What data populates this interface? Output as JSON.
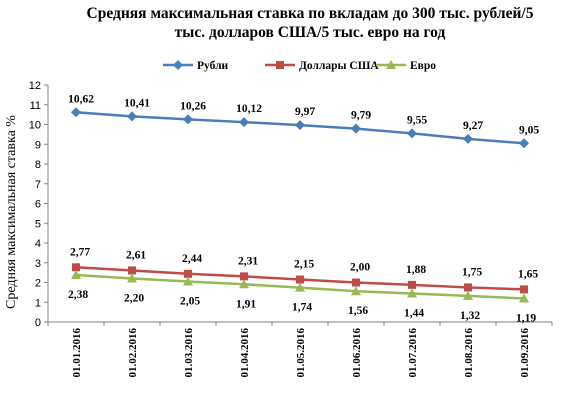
{
  "chart_data": {
    "type": "line",
    "title_line1": "Средняя максимальная ставка по вкладам до 300 тыс. рублей/5",
    "title_line2": "тыс. долларов США/5 тыс. евро на год",
    "ylabel": "Средняя максимальная ставка %",
    "xlabel": "",
    "ylim": [
      0,
      12
    ],
    "yticks": [
      "0",
      "1",
      "2",
      "3",
      "4",
      "5",
      "6",
      "7",
      "8",
      "9",
      "10",
      "11",
      "12"
    ],
    "categories": [
      "01.01.2016",
      "01.02.2016",
      "01.03.2016",
      "01.04.2016",
      "01.05.2016",
      "01.06.2016",
      "01.07.2016",
      "01.08.2016",
      "01.09.2016"
    ],
    "legend_position": "top",
    "grid": false,
    "series": [
      {
        "name": "Рубли",
        "color": "#4a7ebb",
        "marker": "diamond",
        "values": [
          10.62,
          10.41,
          10.26,
          10.12,
          9.97,
          9.79,
          9.55,
          9.27,
          9.05
        ],
        "labels": [
          "10,62",
          "10,41",
          "10,26",
          "10,12",
          "9,97",
          "9,79",
          "9,55",
          "9,27",
          "9,05"
        ]
      },
      {
        "name": "Доллары США",
        "color": "#be4b48",
        "marker": "square",
        "values": [
          2.77,
          2.61,
          2.44,
          2.31,
          2.15,
          2.0,
          1.88,
          1.75,
          1.65
        ],
        "labels": [
          "2,77",
          "2,61",
          "2,44",
          "2,31",
          "2,15",
          "2,00",
          "1,88",
          "1,75",
          "1,65"
        ]
      },
      {
        "name": "Евро",
        "color": "#98b954",
        "marker": "triangle",
        "values": [
          2.38,
          2.2,
          2.05,
          1.91,
          1.74,
          1.56,
          1.44,
          1.32,
          1.19
        ],
        "labels": [
          "2,38",
          "2,20",
          "2,05",
          "1,91",
          "1,74",
          "1,56",
          "1,44",
          "1,32",
          "1,19"
        ]
      }
    ]
  }
}
